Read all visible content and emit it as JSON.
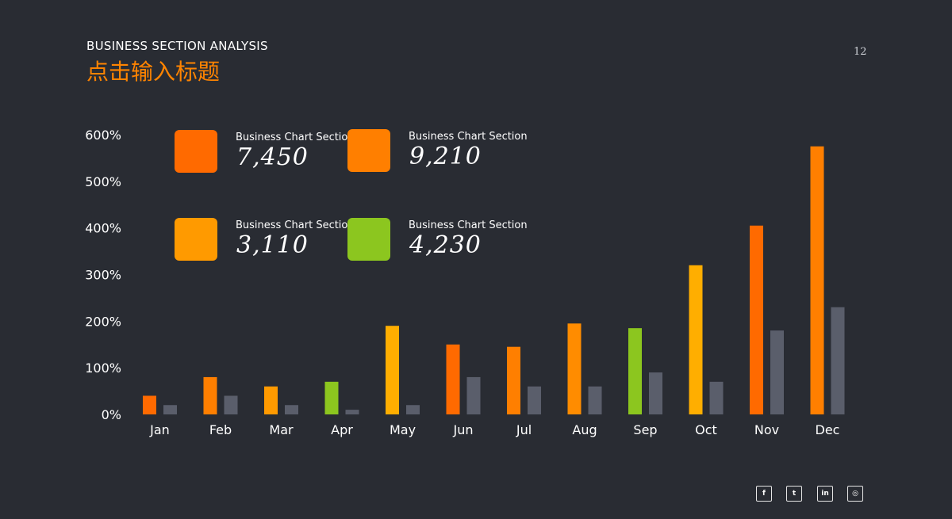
{
  "header": {
    "subtitle": "BUSINESS SECTION ANALYSIS",
    "title": "点击输入标题",
    "page_number": "12"
  },
  "stats": [
    {
      "label": "Business Chart Section",
      "value": "7,450",
      "color": "#ff6a00"
    },
    {
      "label": "Business Chart Section",
      "value": "9,210",
      "color": "#ff7f00"
    },
    {
      "label": "Business Chart Section",
      "value": "3,110",
      "color": "#ff9a00"
    },
    {
      "label": "Business Chart Section",
      "value": "4,230",
      "color": "#8cc61f"
    }
  ],
  "chart_data": {
    "type": "bar",
    "categories": [
      "Jan",
      "Feb",
      "Mar",
      "Apr",
      "May",
      "Jun",
      "Jul",
      "Aug",
      "Sep",
      "Oct",
      "Nov",
      "Dec"
    ],
    "series": [
      {
        "values": [
          40,
          80,
          60,
          70,
          190,
          150,
          145,
          195,
          185,
          320,
          405,
          575
        ]
      },
      {
        "values": [
          20,
          40,
          20,
          10,
          20,
          80,
          60,
          60,
          90,
          70,
          180,
          230
        ]
      }
    ],
    "yticks": [
      "0%",
      "100%",
      "200%",
      "300%",
      "400%",
      "500%",
      "600%"
    ],
    "ylim": [
      0,
      600
    ],
    "primary_colors": [
      "#ff6a00",
      "#ff7f00",
      "#ff9a00",
      "#8cc61f",
      "#ffae00",
      "#ff6a00",
      "#ff7f00",
      "#ff8c00",
      "#8cc61f",
      "#ffae00",
      "#ff6a00",
      "#ff7f00"
    ],
    "secondary_color": "#5a5e6b",
    "grid": false,
    "legend": "none"
  },
  "social": [
    {
      "icon": "facebook-icon",
      "glyph": "f"
    },
    {
      "icon": "twitter-icon",
      "glyph": "t"
    },
    {
      "icon": "linkedin-icon",
      "glyph": "in"
    },
    {
      "icon": "instagram-icon",
      "glyph": "◎"
    }
  ]
}
